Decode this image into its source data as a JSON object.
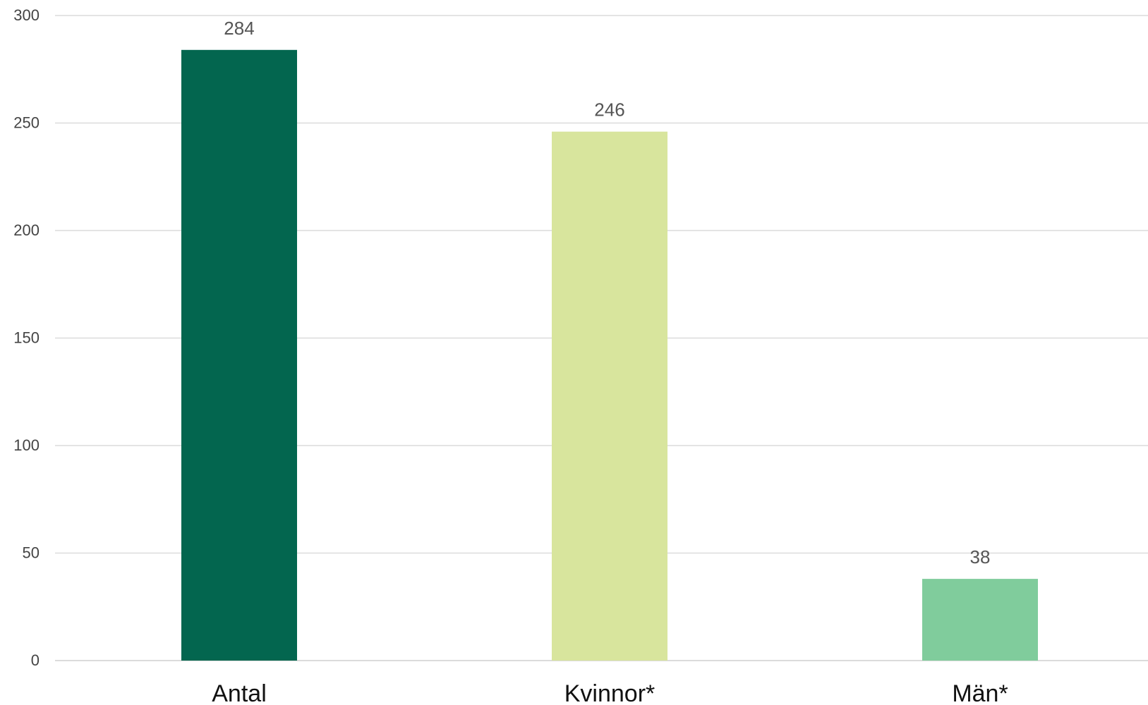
{
  "chart_data": {
    "type": "bar",
    "categories": [
      "Antal",
      "Kvinnor*",
      "Män*"
    ],
    "values": [
      284,
      246,
      38
    ],
    "colors": [
      "#03664F",
      "#D8E59D",
      "#80CC9C"
    ],
    "ylim": [
      0,
      300
    ],
    "yticks": [
      0,
      50,
      100,
      150,
      200,
      250,
      300
    ],
    "grid": true,
    "title": "",
    "xlabel": "",
    "ylabel": ""
  }
}
